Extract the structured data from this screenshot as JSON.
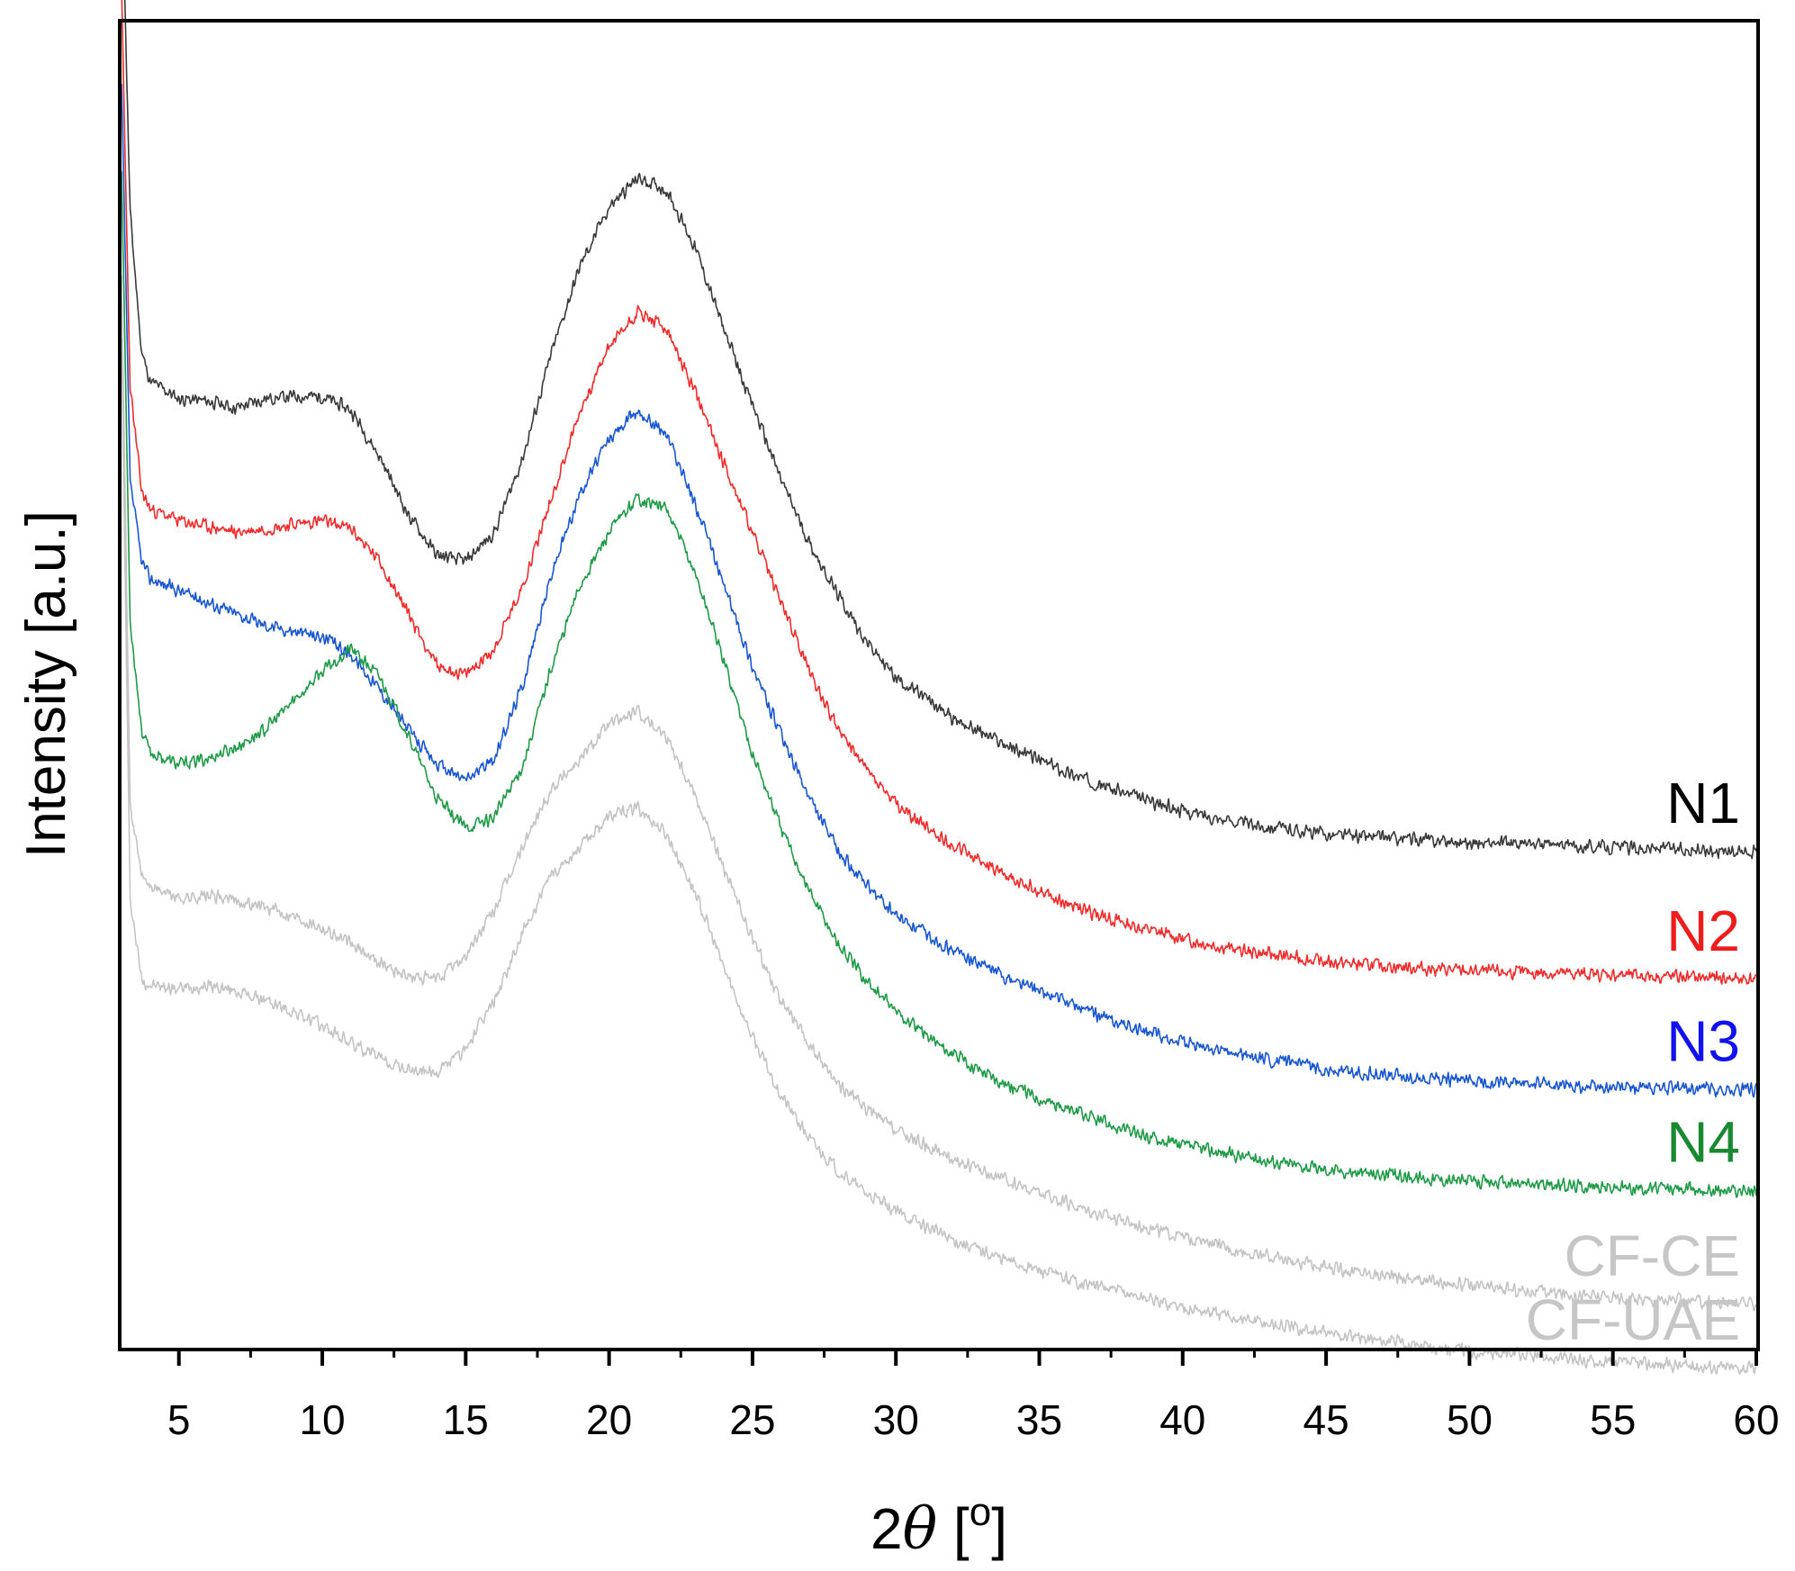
{
  "chart_data": {
    "type": "line",
    "title": "",
    "xlabel": "2θ [º]",
    "xlabel_parts": {
      "prefix": "2",
      "symbol": "θ",
      "open": " [",
      "sup": "o",
      "close": "]"
    },
    "ylabel": "Intensity [a.u.]",
    "xlim": [
      3,
      60
    ],
    "x_ticks": [
      5,
      10,
      15,
      20,
      25,
      30,
      35,
      40,
      45,
      50,
      55,
      60
    ],
    "x_minor_ticks": [
      7.5,
      12.5,
      17.5,
      22.5,
      27.5,
      32.5,
      37.5,
      42.5,
      47.5,
      52.5,
      57.5
    ],
    "y_ticks_shown": false,
    "grid": false,
    "legend": "inline labels at right end of each curve",
    "series": [
      {
        "name": "N1",
        "color": "#3a3a3a",
        "label_color": "#000000",
        "noise": 0.07,
        "seed": 11,
        "points": [
          [
            3.0,
            12.5
          ],
          [
            3.3,
            9.5
          ],
          [
            3.7,
            8.3
          ],
          [
            4,
            8.05
          ],
          [
            5,
            7.9
          ],
          [
            6,
            7.88
          ],
          [
            7,
            7.82
          ],
          [
            8,
            7.9
          ],
          [
            9,
            7.92
          ],
          [
            10,
            7.92
          ],
          [
            11,
            7.8
          ],
          [
            12,
            7.4
          ],
          [
            13,
            6.9
          ],
          [
            14,
            6.55
          ],
          [
            15,
            6.5
          ],
          [
            16,
            6.75
          ],
          [
            17,
            7.4
          ],
          [
            18,
            8.3
          ],
          [
            19,
            9.05
          ],
          [
            20,
            9.55
          ],
          [
            21,
            9.8
          ],
          [
            22,
            9.7
          ],
          [
            23,
            9.2
          ],
          [
            24,
            8.5
          ],
          [
            25,
            7.85
          ],
          [
            26,
            7.2
          ],
          [
            27,
            6.65
          ],
          [
            28,
            6.2
          ],
          [
            29,
            5.8
          ],
          [
            30,
            5.5
          ],
          [
            32,
            5.15
          ],
          [
            34,
            4.9
          ],
          [
            36,
            4.68
          ],
          [
            38,
            4.5
          ],
          [
            40,
            4.35
          ],
          [
            42,
            4.25
          ],
          [
            45,
            4.15
          ],
          [
            50,
            4.08
          ],
          [
            55,
            4.04
          ],
          [
            60,
            4.0
          ]
        ]
      },
      {
        "name": "N2",
        "color": "#ef2b2b",
        "label_color": "#ef1c1c",
        "noise": 0.07,
        "seed": 23,
        "points": [
          [
            3.0,
            11.4
          ],
          [
            3.3,
            8.0
          ],
          [
            3.7,
            7.1
          ],
          [
            4,
            6.95
          ],
          [
            5,
            6.85
          ],
          [
            6,
            6.8
          ],
          [
            7,
            6.75
          ],
          [
            8,
            6.78
          ],
          [
            9,
            6.82
          ],
          [
            10,
            6.85
          ],
          [
            11,
            6.78
          ],
          [
            12,
            6.5
          ],
          [
            13,
            6.05
          ],
          [
            14,
            5.6
          ],
          [
            15,
            5.52
          ],
          [
            16,
            5.75
          ],
          [
            17,
            6.3
          ],
          [
            18,
            7.05
          ],
          [
            19,
            7.8
          ],
          [
            20,
            8.35
          ],
          [
            21,
            8.65
          ],
          [
            22,
            8.5
          ],
          [
            23,
            7.95
          ],
          [
            24,
            7.35
          ],
          [
            25,
            6.75
          ],
          [
            26,
            6.15
          ],
          [
            27,
            5.55
          ],
          [
            28,
            5.05
          ],
          [
            29,
            4.7
          ],
          [
            30,
            4.4
          ],
          [
            32,
            4.05
          ],
          [
            34,
            3.78
          ],
          [
            36,
            3.55
          ],
          [
            38,
            3.38
          ],
          [
            40,
            3.25
          ],
          [
            42,
            3.15
          ],
          [
            45,
            3.05
          ],
          [
            50,
            2.97
          ],
          [
            55,
            2.94
          ],
          [
            60,
            2.9
          ]
        ]
      },
      {
        "name": "N3",
        "color": "#1957d2",
        "label_color": "#1212ee",
        "noise": 0.07,
        "seed": 37,
        "points": [
          [
            3.0,
            10.6
          ],
          [
            3.3,
            7.2
          ],
          [
            3.7,
            6.5
          ],
          [
            4,
            6.35
          ],
          [
            5,
            6.25
          ],
          [
            6,
            6.15
          ],
          [
            7,
            6.05
          ],
          [
            8,
            5.95
          ],
          [
            9,
            5.9
          ],
          [
            10,
            5.85
          ],
          [
            11,
            5.7
          ],
          [
            12,
            5.4
          ],
          [
            13,
            5.05
          ],
          [
            14,
            4.75
          ],
          [
            15,
            4.62
          ],
          [
            16,
            4.8
          ],
          [
            17,
            5.45
          ],
          [
            18,
            6.4
          ],
          [
            19,
            7.1
          ],
          [
            20,
            7.55
          ],
          [
            21,
            7.8
          ],
          [
            22,
            7.6
          ],
          [
            23,
            7.0
          ],
          [
            24,
            6.3
          ],
          [
            25,
            5.6
          ],
          [
            26,
            5.0
          ],
          [
            27,
            4.45
          ],
          [
            28,
            4.0
          ],
          [
            29,
            3.7
          ],
          [
            30,
            3.45
          ],
          [
            32,
            3.15
          ],
          [
            34,
            2.9
          ],
          [
            36,
            2.7
          ],
          [
            38,
            2.5
          ],
          [
            40,
            2.35
          ],
          [
            42,
            2.25
          ],
          [
            45,
            2.12
          ],
          [
            50,
            2.02
          ],
          [
            55,
            1.97
          ],
          [
            60,
            1.95
          ]
        ]
      },
      {
        "name": "N4",
        "color": "#1f9a47",
        "label_color": "#1a8a32",
        "noise": 0.07,
        "seed": 53,
        "points": [
          [
            3.0,
            9.9
          ],
          [
            3.3,
            6.0
          ],
          [
            3.7,
            5.05
          ],
          [
            4,
            4.85
          ],
          [
            5,
            4.75
          ],
          [
            6,
            4.8
          ],
          [
            7,
            4.9
          ],
          [
            8,
            5.05
          ],
          [
            9,
            5.3
          ],
          [
            10,
            5.55
          ],
          [
            11,
            5.75
          ],
          [
            12,
            5.5
          ],
          [
            13,
            5.0
          ],
          [
            14,
            4.45
          ],
          [
            15,
            4.2
          ],
          [
            16,
            4.3
          ],
          [
            17,
            4.75
          ],
          [
            18,
            5.6
          ],
          [
            19,
            6.3
          ],
          [
            20,
            6.75
          ],
          [
            21,
            7.05
          ],
          [
            22,
            6.95
          ],
          [
            23,
            6.4
          ],
          [
            24,
            5.65
          ],
          [
            25,
            4.85
          ],
          [
            26,
            4.2
          ],
          [
            27,
            3.65
          ],
          [
            28,
            3.2
          ],
          [
            29,
            2.88
          ],
          [
            30,
            2.62
          ],
          [
            32,
            2.25
          ],
          [
            34,
            1.98
          ],
          [
            36,
            1.78
          ],
          [
            38,
            1.6
          ],
          [
            40,
            1.47
          ],
          [
            42,
            1.38
          ],
          [
            45,
            1.26
          ],
          [
            50,
            1.16
          ],
          [
            55,
            1.11
          ],
          [
            60,
            1.08
          ]
        ]
      },
      {
        "name": "CF-CE",
        "color": "#c4c4c4",
        "label_color": "#c6c6c6",
        "noise": 0.07,
        "seed": 71,
        "points": [
          [
            3.0,
            9.0
          ],
          [
            3.3,
            4.4
          ],
          [
            3.7,
            3.8
          ],
          [
            4,
            3.7
          ],
          [
            5,
            3.6
          ],
          [
            6,
            3.62
          ],
          [
            7,
            3.58
          ],
          [
            8,
            3.52
          ],
          [
            9,
            3.45
          ],
          [
            10,
            3.35
          ],
          [
            11,
            3.2
          ],
          [
            12,
            3.05
          ],
          [
            13,
            2.92
          ],
          [
            14,
            2.9
          ],
          [
            15,
            3.1
          ],
          [
            16,
            3.5
          ],
          [
            17,
            4.05
          ],
          [
            18,
            4.55
          ],
          [
            19,
            4.8
          ],
          [
            20,
            5.1
          ],
          [
            21,
            5.2
          ],
          [
            22,
            5.0
          ],
          [
            23,
            4.5
          ],
          [
            24,
            3.85
          ],
          [
            25,
            3.25
          ],
          [
            26,
            2.72
          ],
          [
            27,
            2.32
          ],
          [
            28,
            2.0
          ],
          [
            29,
            1.78
          ],
          [
            30,
            1.6
          ],
          [
            32,
            1.35
          ],
          [
            34,
            1.15
          ],
          [
            36,
            0.97
          ],
          [
            38,
            0.82
          ],
          [
            40,
            0.68
          ],
          [
            42,
            0.56
          ],
          [
            45,
            0.42
          ],
          [
            50,
            0.26
          ],
          [
            55,
            0.16
          ],
          [
            60,
            0.1
          ]
        ]
      },
      {
        "name": "CF-UAE",
        "color": "#c4c4c4",
        "label_color": "#c6c6c6",
        "noise": 0.07,
        "seed": 97,
        "points": [
          [
            3.0,
            8.4
          ],
          [
            3.3,
            3.6
          ],
          [
            3.7,
            2.9
          ],
          [
            4,
            2.85
          ],
          [
            5,
            2.82
          ],
          [
            6,
            2.85
          ],
          [
            7,
            2.8
          ],
          [
            8,
            2.72
          ],
          [
            9,
            2.62
          ],
          [
            10,
            2.5
          ],
          [
            11,
            2.35
          ],
          [
            12,
            2.22
          ],
          [
            13,
            2.12
          ],
          [
            14,
            2.1
          ],
          [
            15,
            2.3
          ],
          [
            16,
            2.72
          ],
          [
            17,
            3.3
          ],
          [
            18,
            3.8
          ],
          [
            19,
            4.05
          ],
          [
            20,
            4.3
          ],
          [
            21,
            4.38
          ],
          [
            22,
            4.15
          ],
          [
            23,
            3.65
          ],
          [
            24,
            3.0
          ],
          [
            25,
            2.4
          ],
          [
            26,
            1.9
          ],
          [
            27,
            1.52
          ],
          [
            28,
            1.25
          ],
          [
            29,
            1.05
          ],
          [
            30,
            0.9
          ],
          [
            32,
            0.66
          ],
          [
            34,
            0.47
          ],
          [
            36,
            0.32
          ],
          [
            38,
            0.2
          ],
          [
            40,
            0.08
          ],
          [
            42,
            -0.02
          ],
          [
            45,
            -0.15
          ],
          [
            50,
            -0.3
          ],
          [
            55,
            -0.4
          ],
          [
            60,
            -0.45
          ]
        ]
      }
    ]
  }
}
